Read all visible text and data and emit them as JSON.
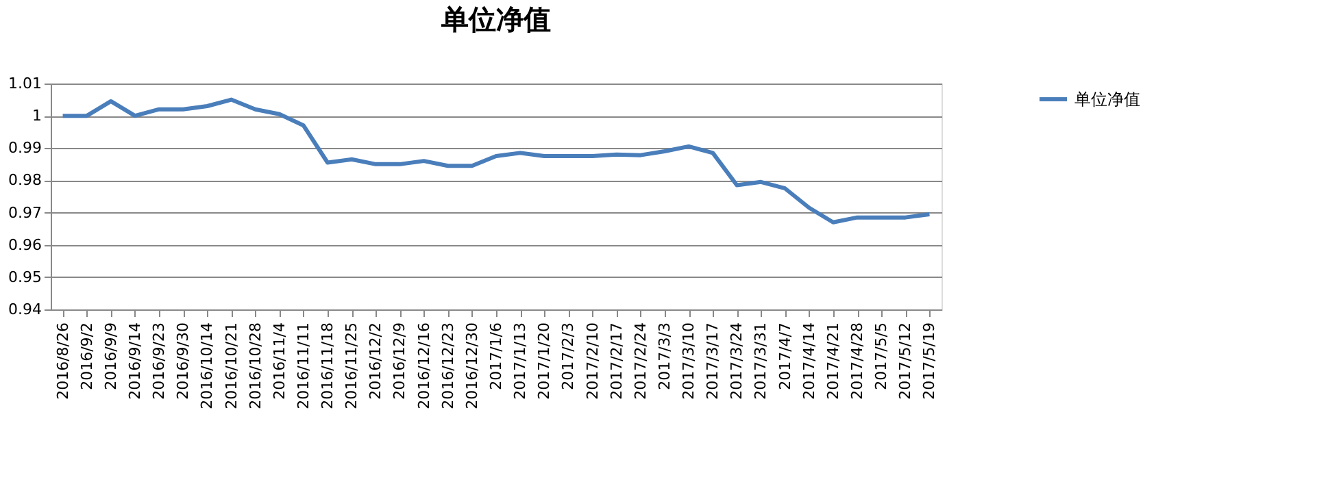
{
  "chart_data": {
    "type": "line",
    "title": "单位净值",
    "categories": [
      "2016/8/26",
      "2016/9/2",
      "2016/9/9",
      "2016/9/14",
      "2016/9/23",
      "2016/9/30",
      "2016/10/14",
      "2016/10/21",
      "2016/10/28",
      "2016/11/4",
      "2016/11/11",
      "2016/11/18",
      "2016/11/25",
      "2016/12/2",
      "2016/12/9",
      "2016/12/16",
      "2016/12/23",
      "2016/12/30",
      "2017/1/6",
      "2017/1/13",
      "2017/1/20",
      "2017/2/3",
      "2017/2/10",
      "2017/2/17",
      "2017/2/24",
      "2017/3/3",
      "2017/3/10",
      "2017/3/17",
      "2017/3/24",
      "2017/3/31",
      "2017/4/7",
      "2017/4/14",
      "2017/4/21",
      "2017/4/28",
      "2017/5/5",
      "2017/5/12",
      "2017/5/19"
    ],
    "series": [
      {
        "name": "单位净值",
        "color": "#4a7ebb",
        "values": [
          1.0,
          1.0,
          1.0045,
          1.0,
          1.002,
          1.002,
          1.003,
          1.005,
          1.002,
          1.0005,
          0.997,
          0.9855,
          0.9865,
          0.985,
          0.985,
          0.986,
          0.9845,
          0.9845,
          0.9875,
          0.9885,
          0.9875,
          0.9875,
          0.9875,
          0.988,
          0.9878,
          0.989,
          0.9905,
          0.9885,
          0.9785,
          0.9795,
          0.9775,
          0.9715,
          0.967,
          0.9685,
          0.9685,
          0.9685,
          0.9695
        ]
      }
    ],
    "ylim": [
      0.94,
      1.01
    ],
    "yticks": [
      0.94,
      0.95,
      0.96,
      0.97,
      0.98,
      0.99,
      1,
      1.01
    ],
    "grid": "y",
    "legend": "right",
    "marker": "none",
    "line_style": "solid"
  }
}
